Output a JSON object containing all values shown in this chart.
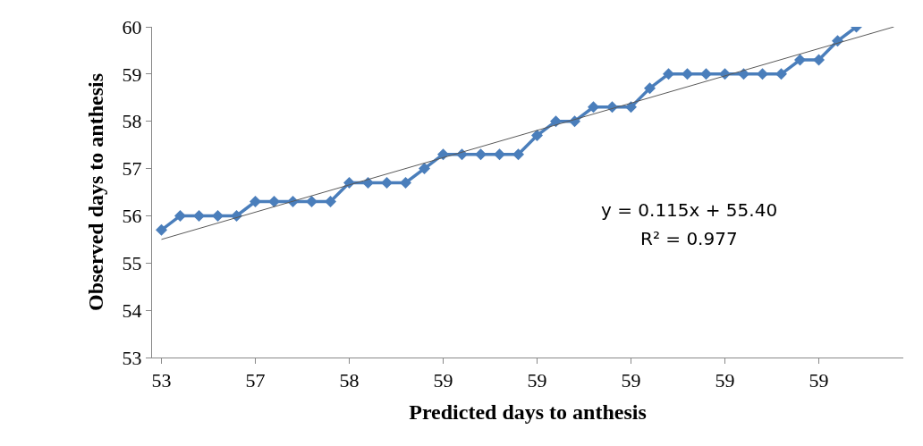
{
  "chart_data": {
    "type": "line",
    "xlabel": "Predicted days to anthesis",
    "ylabel": "Observed days to anthesis",
    "categories": [
      "53",
      null,
      null,
      null,
      null,
      "57",
      null,
      null,
      null,
      null,
      "58",
      null,
      null,
      null,
      null,
      "59",
      null,
      null,
      null,
      null,
      "59",
      null,
      null,
      null,
      null,
      "59",
      null,
      null,
      null,
      null,
      "59",
      null,
      null,
      null,
      null,
      "59",
      null,
      null,
      null,
      null
    ],
    "series": [
      {
        "color": "#4a7ebb",
        "marker": "diamond",
        "values": [
          55.7,
          56.0,
          56.0,
          56.0,
          56.0,
          56.3,
          56.3,
          56.3,
          56.3,
          56.3,
          56.7,
          56.7,
          56.7,
          56.7,
          57.0,
          57.3,
          57.3,
          57.3,
          57.3,
          57.3,
          57.7,
          58.0,
          58.0,
          58.3,
          58.3,
          58.3,
          58.7,
          59.0,
          59.0,
          59.0,
          59.0,
          59.0,
          59.0,
          59.0,
          59.3,
          59.3,
          59.7,
          60.0,
          null,
          null
        ]
      },
      {
        "color": "#595959",
        "marker": "none",
        "values": [
          55.5,
          null,
          null,
          null,
          null,
          null,
          null,
          null,
          null,
          null,
          null,
          null,
          null,
          null,
          null,
          null,
          null,
          null,
          null,
          null,
          null,
          null,
          null,
          null,
          null,
          null,
          null,
          null,
          null,
          null,
          null,
          null,
          null,
          null,
          null,
          null,
          null,
          null,
          null,
          60.0
        ]
      }
    ],
    "ylim": [
      53,
      60
    ],
    "yticks": [
      53,
      54,
      55,
      56,
      57,
      58,
      59,
      60
    ],
    "annotations": [
      "y = 0.115x + 55.40",
      "R² = 0.977"
    ]
  }
}
